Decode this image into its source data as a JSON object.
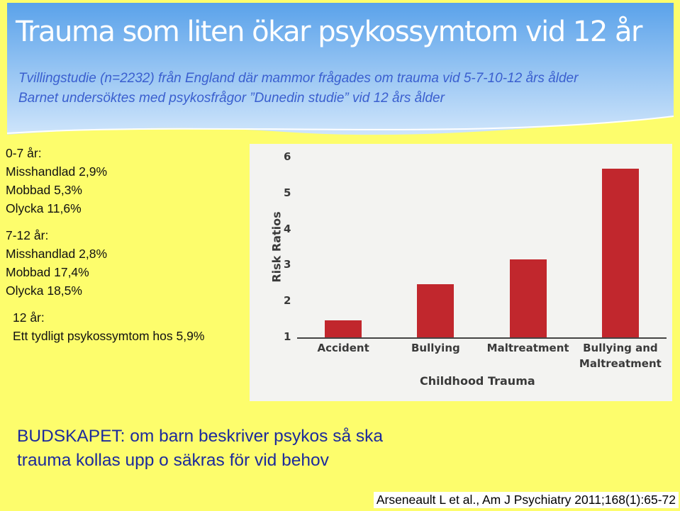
{
  "header": {
    "title": "Trauma som liten ökar psykossymtom vid 12 år",
    "subtitle_lines": [
      "Tvillingstudie (n=2232) från England där mammor frågades om trauma vid 5-7-10-12 års ålder",
      "Barnet undersöktes med psykosfrågor ”Dunedin studie” vid 12 års ålder"
    ]
  },
  "notes": [
    {
      "heading": "0-7 år:",
      "items": [
        "Misshandlad 2,9%",
        "Mobbad 5,3%",
        "Olycka 11,6%"
      ]
    },
    {
      "heading": "7-12 år:",
      "items": [
        "Misshandlad 2,8%",
        "Mobbad 17,4%",
        "Olycka 18,5%"
      ]
    },
    {
      "heading": "12 år:",
      "items": [
        "Ett tydligt psykossymtom hos 5,9%"
      ]
    }
  ],
  "message_lines": [
    "BUDSKAPET: om barn beskriver psykos så ska",
    "trauma kollas upp o säkras för vid behov"
  ],
  "citation": "Arseneault L et al., Am J Psychiatry 2011;168(1):65-72",
  "chart_data": {
    "type": "bar",
    "y_label": "Risk Ratios",
    "x_label": "Childhood Trauma",
    "categories": [
      "Accident",
      "Bullying",
      "Maltreatment",
      "Bullying and Maltreatment"
    ],
    "values": [
      1.47,
      2.48,
      3.17,
      5.69
    ],
    "color": "#c1272d",
    "ylim": [
      1,
      6.3
    ],
    "yticks": [
      1,
      2,
      3,
      4,
      5,
      6
    ],
    "grid": false
  }
}
